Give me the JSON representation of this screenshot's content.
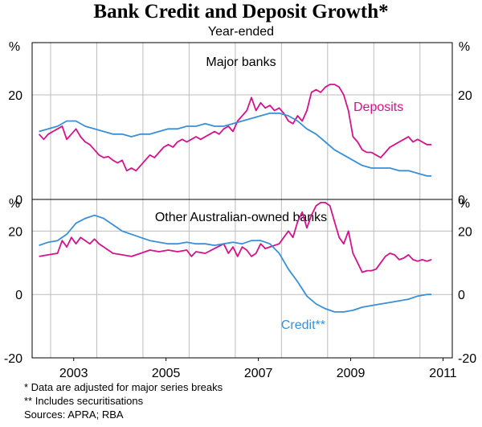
{
  "title": "Bank Credit and Deposit Growth*",
  "subtitle": "Year-ended",
  "footnotes": [
    "*  Data are adjusted for major series breaks",
    "** Includes securitisations",
    "Sources: APRA; RBA"
  ],
  "colors": {
    "credit": "#3a8fd6",
    "deposits": "#d4128a",
    "axis": "#000000",
    "grid": "#bdbdbd"
  },
  "chart_data": [
    {
      "type": "line",
      "panel_title": "Major banks",
      "unit": "%",
      "ylim": [
        0,
        30
      ],
      "yticks": [
        0,
        20
      ],
      "xlim": [
        2002.6,
        2011.7
      ],
      "xticks": [
        "2003",
        "2005",
        "2007",
        "2009",
        "2011"
      ],
      "grid": true,
      "series": [
        {
          "key": "deposits",
          "name": "Deposits",
          "points": [
            [
              2002.75,
              12.5
            ],
            [
              2002.85,
              11.5
            ],
            [
              2002.95,
              12.5
            ],
            [
              2003.05,
              13
            ],
            [
              2003.15,
              13.5
            ],
            [
              2003.25,
              14
            ],
            [
              2003.35,
              11.5
            ],
            [
              2003.45,
              12.5
            ],
            [
              2003.55,
              13.5
            ],
            [
              2003.65,
              12
            ],
            [
              2003.75,
              11
            ],
            [
              2003.85,
              10.5
            ],
            [
              2003.95,
              9.5
            ],
            [
              2004.05,
              8.5
            ],
            [
              2004.15,
              8
            ],
            [
              2004.25,
              8.2
            ],
            [
              2004.35,
              7.5
            ],
            [
              2004.45,
              7
            ],
            [
              2004.55,
              7.5
            ],
            [
              2004.65,
              5.5
            ],
            [
              2004.75,
              6
            ],
            [
              2004.85,
              5.5
            ],
            [
              2004.95,
              6.5
            ],
            [
              2005.05,
              7.5
            ],
            [
              2005.15,
              8.5
            ],
            [
              2005.25,
              8
            ],
            [
              2005.35,
              9
            ],
            [
              2005.45,
              10
            ],
            [
              2005.55,
              10.5
            ],
            [
              2005.65,
              10
            ],
            [
              2005.75,
              11
            ],
            [
              2005.85,
              11.5
            ],
            [
              2005.95,
              11
            ],
            [
              2006.05,
              11.5
            ],
            [
              2006.15,
              12
            ],
            [
              2006.25,
              11.5
            ],
            [
              2006.35,
              12
            ],
            [
              2006.45,
              12.5
            ],
            [
              2006.55,
              13
            ],
            [
              2006.65,
              12.5
            ],
            [
              2006.75,
              13.5
            ],
            [
              2006.85,
              14
            ],
            [
              2006.95,
              13
            ],
            [
              2007.05,
              15
            ],
            [
              2007.15,
              16
            ],
            [
              2007.25,
              17
            ],
            [
              2007.35,
              19.5
            ],
            [
              2007.45,
              17
            ],
            [
              2007.55,
              18.5
            ],
            [
              2007.65,
              17.5
            ],
            [
              2007.75,
              18
            ],
            [
              2007.85,
              17
            ],
            [
              2007.95,
              17.5
            ],
            [
              2008.05,
              16.5
            ],
            [
              2008.15,
              15
            ],
            [
              2008.25,
              14.5
            ],
            [
              2008.35,
              16
            ],
            [
              2008.45,
              15
            ],
            [
              2008.55,
              17
            ],
            [
              2008.65,
              20.5
            ],
            [
              2008.75,
              21
            ],
            [
              2008.85,
              20.5
            ],
            [
              2008.95,
              21.5
            ],
            [
              2009.05,
              22
            ],
            [
              2009.15,
              22
            ],
            [
              2009.25,
              21.5
            ],
            [
              2009.35,
              20
            ],
            [
              2009.45,
              17
            ],
            [
              2009.55,
              12
            ],
            [
              2009.65,
              11
            ],
            [
              2009.75,
              9.5
            ],
            [
              2009.85,
              9
            ],
            [
              2009.95,
              9
            ],
            [
              2010.05,
              8.5
            ],
            [
              2010.15,
              8
            ],
            [
              2010.25,
              9
            ],
            [
              2010.35,
              10
            ],
            [
              2010.45,
              10.5
            ],
            [
              2010.55,
              11
            ],
            [
              2010.65,
              11.5
            ],
            [
              2010.75,
              12
            ],
            [
              2010.85,
              11
            ],
            [
              2010.95,
              11.5
            ],
            [
              2011.05,
              11
            ],
            [
              2011.15,
              10.5
            ],
            [
              2011.25,
              10.5
            ]
          ]
        },
        {
          "key": "credit",
          "name": "",
          "points": [
            [
              2002.75,
              13
            ],
            [
              2002.95,
              13.5
            ],
            [
              2003.15,
              14
            ],
            [
              2003.35,
              15
            ],
            [
              2003.55,
              15
            ],
            [
              2003.75,
              14
            ],
            [
              2003.95,
              13.5
            ],
            [
              2004.15,
              13
            ],
            [
              2004.35,
              12.5
            ],
            [
              2004.55,
              12.5
            ],
            [
              2004.75,
              12
            ],
            [
              2004.95,
              12.5
            ],
            [
              2005.15,
              12.5
            ],
            [
              2005.35,
              13
            ],
            [
              2005.55,
              13.5
            ],
            [
              2005.75,
              13.5
            ],
            [
              2005.95,
              14
            ],
            [
              2006.15,
              14
            ],
            [
              2006.35,
              14.5
            ],
            [
              2006.55,
              14
            ],
            [
              2006.75,
              14
            ],
            [
              2006.95,
              14.5
            ],
            [
              2007.15,
              15
            ],
            [
              2007.35,
              15.5
            ],
            [
              2007.55,
              16
            ],
            [
              2007.75,
              16.5
            ],
            [
              2007.95,
              16.5
            ],
            [
              2008.15,
              16
            ],
            [
              2008.35,
              15
            ],
            [
              2008.55,
              13.5
            ],
            [
              2008.75,
              12.5
            ],
            [
              2008.95,
              11
            ],
            [
              2009.15,
              9.5
            ],
            [
              2009.35,
              8.5
            ],
            [
              2009.55,
              7.5
            ],
            [
              2009.75,
              6.5
            ],
            [
              2009.95,
              6
            ],
            [
              2010.15,
              6
            ],
            [
              2010.35,
              6
            ],
            [
              2010.55,
              5.5
            ],
            [
              2010.75,
              5.5
            ],
            [
              2010.95,
              5
            ],
            [
              2011.15,
              4.5
            ],
            [
              2011.25,
              4.5
            ]
          ]
        }
      ]
    },
    {
      "type": "line",
      "panel_title": "Other Australian-owned banks",
      "unit": "%",
      "ylim": [
        -20,
        30
      ],
      "yticks": [
        -20,
        0,
        20
      ],
      "xlim": [
        2002.6,
        2011.7
      ],
      "xticks": [
        "2003",
        "2005",
        "2007",
        "2009",
        "2011"
      ],
      "grid": true,
      "series": [
        {
          "key": "deposits",
          "name": "",
          "points": [
            [
              2002.75,
              12
            ],
            [
              2002.95,
              12.5
            ],
            [
              2003.15,
              13
            ],
            [
              2003.25,
              17
            ],
            [
              2003.35,
              15
            ],
            [
              2003.45,
              18
            ],
            [
              2003.55,
              16
            ],
            [
              2003.65,
              18
            ],
            [
              2003.75,
              17
            ],
            [
              2003.85,
              16
            ],
            [
              2003.95,
              17.5
            ],
            [
              2004.05,
              16
            ],
            [
              2004.15,
              15
            ],
            [
              2004.35,
              13
            ],
            [
              2004.55,
              12.5
            ],
            [
              2004.75,
              12
            ],
            [
              2004.95,
              13
            ],
            [
              2005.15,
              14
            ],
            [
              2005.35,
              13.5
            ],
            [
              2005.55,
              14
            ],
            [
              2005.75,
              13.5
            ],
            [
              2005.95,
              14
            ],
            [
              2006.05,
              12
            ],
            [
              2006.15,
              13.5
            ],
            [
              2006.35,
              13
            ],
            [
              2006.55,
              14.5
            ],
            [
              2006.75,
              16
            ],
            [
              2006.85,
              13
            ],
            [
              2006.95,
              15
            ],
            [
              2007.05,
              12
            ],
            [
              2007.15,
              15
            ],
            [
              2007.25,
              14
            ],
            [
              2007.35,
              12
            ],
            [
              2007.45,
              13
            ],
            [
              2007.55,
              16
            ],
            [
              2007.65,
              14.5
            ],
            [
              2007.75,
              15
            ],
            [
              2007.95,
              16
            ],
            [
              2008.15,
              20
            ],
            [
              2008.25,
              18
            ],
            [
              2008.35,
              23
            ],
            [
              2008.45,
              26
            ],
            [
              2008.55,
              21
            ],
            [
              2008.65,
              25
            ],
            [
              2008.75,
              28
            ],
            [
              2008.85,
              29
            ],
            [
              2008.95,
              29
            ],
            [
              2009.05,
              28
            ],
            [
              2009.15,
              23
            ],
            [
              2009.25,
              18
            ],
            [
              2009.35,
              16
            ],
            [
              2009.45,
              20
            ],
            [
              2009.55,
              13
            ],
            [
              2009.65,
              10
            ],
            [
              2009.75,
              7
            ],
            [
              2009.85,
              7.5
            ],
            [
              2009.95,
              7.5
            ],
            [
              2010.05,
              8
            ],
            [
              2010.15,
              10
            ],
            [
              2010.25,
              12
            ],
            [
              2010.35,
              13
            ],
            [
              2010.45,
              12.5
            ],
            [
              2010.55,
              11
            ],
            [
              2010.65,
              11.5
            ],
            [
              2010.75,
              12.5
            ],
            [
              2010.85,
              11
            ],
            [
              2010.95,
              10.5
            ],
            [
              2011.05,
              11
            ],
            [
              2011.15,
              10.5
            ],
            [
              2011.25,
              11
            ]
          ]
        },
        {
          "key": "credit",
          "name": "Credit**",
          "points": [
            [
              2002.75,
              15.5
            ],
            [
              2002.95,
              16.5
            ],
            [
              2003.15,
              17
            ],
            [
              2003.35,
              19
            ],
            [
              2003.55,
              22.5
            ],
            [
              2003.75,
              24
            ],
            [
              2003.95,
              25
            ],
            [
              2004.15,
              24
            ],
            [
              2004.35,
              22
            ],
            [
              2004.55,
              20
            ],
            [
              2004.75,
              19
            ],
            [
              2004.95,
              18
            ],
            [
              2005.15,
              17
            ],
            [
              2005.35,
              16.5
            ],
            [
              2005.55,
              16
            ],
            [
              2005.75,
              16
            ],
            [
              2005.95,
              16.5
            ],
            [
              2006.15,
              16
            ],
            [
              2006.35,
              16
            ],
            [
              2006.55,
              15.5
            ],
            [
              2006.75,
              16
            ],
            [
              2006.95,
              16.5
            ],
            [
              2007.15,
              16
            ],
            [
              2007.35,
              17
            ],
            [
              2007.55,
              17
            ],
            [
              2007.75,
              16
            ],
            [
              2007.95,
              13
            ],
            [
              2008.15,
              8
            ],
            [
              2008.35,
              4
            ],
            [
              2008.55,
              -0.5
            ],
            [
              2008.75,
              -3
            ],
            [
              2008.95,
              -4.5
            ],
            [
              2009.15,
              -5.5
            ],
            [
              2009.35,
              -5.5
            ],
            [
              2009.55,
              -5
            ],
            [
              2009.75,
              -4
            ],
            [
              2009.95,
              -3.5
            ],
            [
              2010.15,
              -3
            ],
            [
              2010.35,
              -2.5
            ],
            [
              2010.55,
              -2
            ],
            [
              2010.75,
              -1.5
            ],
            [
              2010.95,
              -0.5
            ],
            [
              2011.15,
              0
            ],
            [
              2011.25,
              0
            ]
          ]
        }
      ]
    }
  ]
}
